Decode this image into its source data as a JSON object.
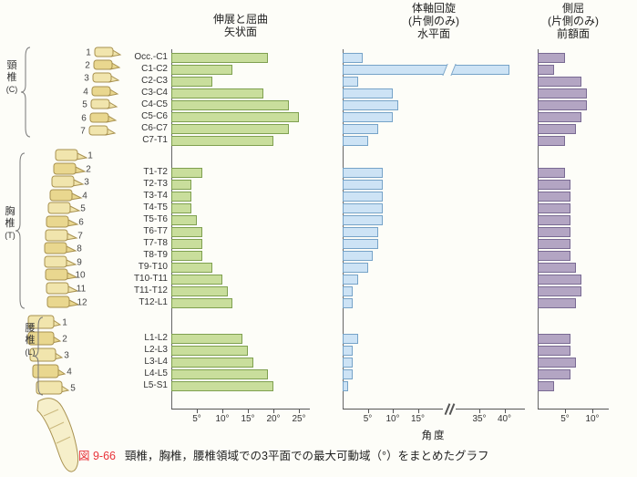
{
  "figure": {
    "number": "図 9-66",
    "caption": "頸椎，胸椎，腰椎領域での3平面での最大可動域（°）をまとめたグラフ"
  },
  "spine_regions": [
    {
      "name": "cervical",
      "label_kanji": "頸椎",
      "label_letter": "(C)",
      "count": 7
    },
    {
      "name": "thoracic",
      "label_kanji": "胸椎",
      "label_letter": "(T)",
      "count": 12
    },
    {
      "name": "lumbar",
      "label_kanji": "腰椎",
      "label_letter": "(L)",
      "count": 5
    }
  ],
  "chart_data": {
    "type": "bar",
    "orientation": "horizontal",
    "unit": "度（°）",
    "xlabel": "角度",
    "categories": [
      "Occ.-C1",
      "C1-C2",
      "C2-C3",
      "C3-C4",
      "C4-C5",
      "C5-C6",
      "C6-C7",
      "C7-T1",
      "T1-T2",
      "T2-T3",
      "T3-T4",
      "T4-T5",
      "T5-T6",
      "T6-T7",
      "T7-T8",
      "T8-T9",
      "T9-T10",
      "T10-T11",
      "T11-T12",
      "T12-L1",
      "L1-L2",
      "L2-L3",
      "L3-L4",
      "L4-L5",
      "L5-S1"
    ],
    "row_groups": [
      {
        "name": "cervical",
        "rows": [
          0,
          7
        ]
      },
      {
        "name": "thoracic",
        "rows": [
          8,
          19
        ]
      },
      {
        "name": "lumbar",
        "rows": [
          20,
          24
        ]
      }
    ],
    "panels": [
      {
        "id": "sagittal",
        "title_lines": [
          "伸展と屈曲",
          "矢状面"
        ],
        "fill": "#c9de9c",
        "stroke": "#7fa050",
        "xlim": [
          0,
          27
        ],
        "ticks": [
          5,
          10,
          15,
          20,
          25
        ],
        "tick_labels": [
          "5°",
          "10°",
          "15°",
          "20°",
          "25°"
        ],
        "values": [
          19,
          12,
          8,
          18,
          23,
          25,
          23,
          20,
          6,
          4,
          4,
          4,
          5,
          6,
          6,
          6,
          8,
          10,
          11,
          12,
          14,
          15,
          16,
          19,
          20
        ]
      },
      {
        "id": "axial-rotation",
        "title_lines": [
          "体軸回旋",
          "(片側のみ)",
          "水平面"
        ],
        "fill": "#cde3f5",
        "stroke": "#76a3c8",
        "xlim": [
          0,
          42
        ],
        "axis_break": [
          17,
          33
        ],
        "ticks": [
          5,
          10,
          15,
          35,
          40
        ],
        "tick_labels": [
          "5°",
          "10°",
          "15°",
          "35°",
          "40°"
        ],
        "values": [
          4,
          41,
          3,
          10,
          11,
          10,
          7,
          5,
          8,
          8,
          8,
          8,
          8,
          7,
          7,
          6,
          5,
          3,
          2,
          2,
          3,
          2,
          2,
          2,
          1
        ]
      },
      {
        "id": "lateral-flexion",
        "title_lines": [
          "側屈",
          "(片側のみ)",
          "前額面"
        ],
        "fill": "#b3a5c3",
        "stroke": "#796a93",
        "xlim": [
          0,
          13
        ],
        "ticks": [
          5,
          10
        ],
        "tick_labels": [
          "5°",
          "10°"
        ],
        "values": [
          5,
          3,
          8,
          9,
          9,
          8,
          7,
          5,
          5,
          6,
          6,
          6,
          6,
          6,
          6,
          6,
          7,
          8,
          8,
          7,
          6,
          6,
          7,
          6,
          3
        ]
      }
    ]
  }
}
